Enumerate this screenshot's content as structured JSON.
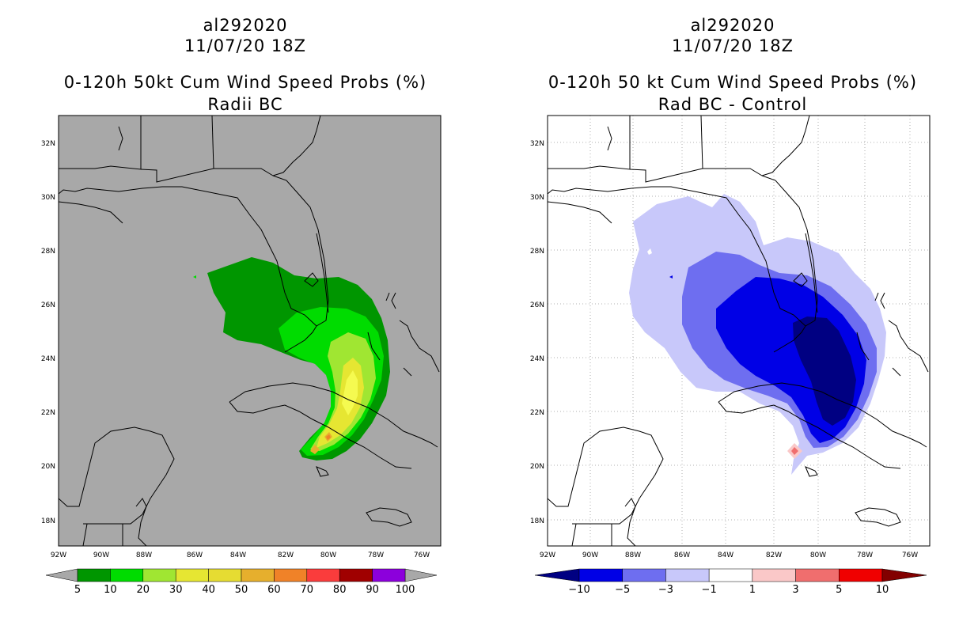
{
  "left_panel": {
    "storm": "al292020",
    "datetime": "11/07/20 18Z",
    "product": "0-120h 50kt Cum Wind Speed Probs (%)",
    "subtitle": "Radii BC",
    "x_ticks": [
      "92W",
      "90W",
      "88W",
      "86W",
      "84W",
      "82W",
      "80W",
      "78W",
      "76W"
    ],
    "y_ticks": [
      "32N",
      "30N",
      "28N",
      "26N",
      "24N",
      "22N",
      "20N",
      "18N"
    ],
    "colorbar": {
      "labels": [
        "5",
        "10",
        "20",
        "30",
        "40",
        "50",
        "60",
        "70",
        "80",
        "90",
        "100"
      ],
      "colors": [
        "#009600",
        "#00dc00",
        "#a0e632",
        "#e6e632",
        "#e6dc32",
        "#e6af2d",
        "#f08228",
        "#fa3c3c",
        "#a00000",
        "#8c00dc"
      ]
    },
    "fill_colors": {
      "background": "#a8a8a8",
      "p5": "#009600",
      "p10": "#00dc00",
      "p20": "#a0e632",
      "p30": "#e6e632",
      "p40": "#f5fa50",
      "p50": "#e6af2d",
      "p60": "#f08228"
    }
  },
  "right_panel": {
    "storm": "al292020",
    "datetime": "11/07/20 18Z",
    "product": "0-120h 50 kt Cum Wind Speed Probs (%)",
    "subtitle": "Rad BC - Control",
    "x_ticks": [
      "92W",
      "90W",
      "88W",
      "86W",
      "84W",
      "82W",
      "80W",
      "78W",
      "76W"
    ],
    "y_ticks": [
      "32N",
      "30N",
      "28N",
      "26N",
      "24N",
      "22N",
      "20N",
      "18N"
    ],
    "colorbar": {
      "labels": [
        "-10",
        "-5",
        "-3",
        "-1",
        "1",
        "3",
        "5",
        "10"
      ],
      "colors": [
        "#000082",
        "#0000e6",
        "#6e6ef0",
        "#c8c8fa",
        "#ffffff",
        "#fac8c8",
        "#f06e6e",
        "#f00000",
        "#820000"
      ]
    },
    "fill_colors": {
      "n1": "#c8c8fa",
      "n3": "#6e6ef0",
      "n5": "#0000e6",
      "n10": "#000082",
      "p1": "#fac8c8",
      "p3": "#f06e6e"
    }
  }
}
